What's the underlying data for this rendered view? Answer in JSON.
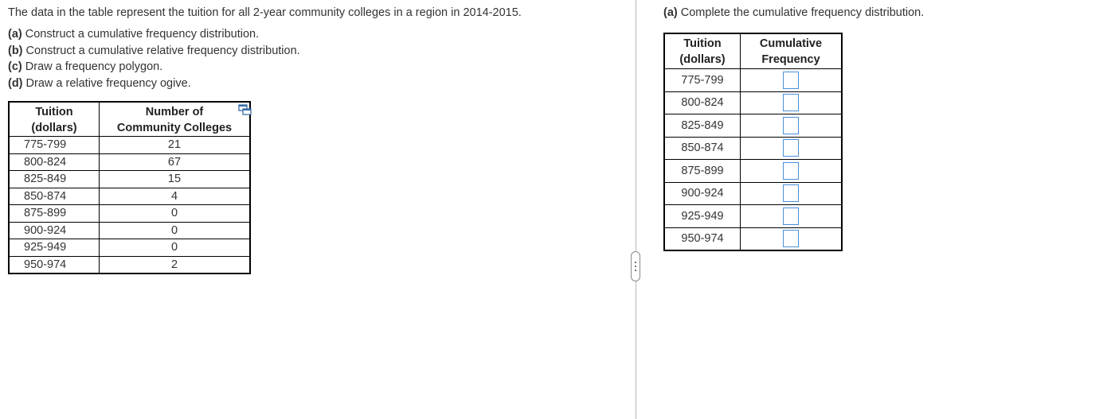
{
  "question": {
    "intro": "The data in the table represent the tuition for all 2-year community colleges in a region in 2014-2015.",
    "tasks": [
      {
        "label": "(a)",
        "text": " Construct a cumulative frequency distribution."
      },
      {
        "label": "(b)",
        "text": " Construct a cumulative relative frequency distribution."
      },
      {
        "label": "(c)",
        "text": " Draw a frequency polygon."
      },
      {
        "label": "(d)",
        "text": " Draw a relative frequency ogive."
      }
    ]
  },
  "data_table": {
    "headers": {
      "tuition_line1": "Tuition",
      "tuition_line2": "(dollars)",
      "count_line1": "Number of",
      "count_line2": "Community Colleges"
    },
    "rows": [
      {
        "range": "775-799",
        "count": "21"
      },
      {
        "range": "800-824",
        "count": "67"
      },
      {
        "range": "825-849",
        "count": "15"
      },
      {
        "range": "850-874",
        "count": "4"
      },
      {
        "range": "875-899",
        "count": "0"
      },
      {
        "range": "900-924",
        "count": "0"
      },
      {
        "range": "925-949",
        "count": "0"
      },
      {
        "range": "950-974",
        "count": "2"
      }
    ]
  },
  "icons": {
    "copy": "copy-to-clipboard-icon",
    "handle": "pane-resize-handle-icon"
  },
  "answer": {
    "heading_label": "(a)",
    "heading_text": " Complete the cumulative frequency distribution.",
    "headers": {
      "tuition_line1": "Tuition",
      "tuition_line2": "(dollars)",
      "cum_line1": "Cumulative",
      "cum_line2": "Frequency"
    },
    "rows": [
      {
        "range": "775-799",
        "value": ""
      },
      {
        "range": "800-824",
        "value": ""
      },
      {
        "range": "825-849",
        "value": ""
      },
      {
        "range": "850-874",
        "value": ""
      },
      {
        "range": "875-899",
        "value": ""
      },
      {
        "range": "900-924",
        "value": ""
      },
      {
        "range": "925-949",
        "value": ""
      },
      {
        "range": "950-974",
        "value": ""
      }
    ]
  },
  "colors": {
    "text": "#333333",
    "input_border": "#4a90d9",
    "divider": "#b8b8b8"
  }
}
